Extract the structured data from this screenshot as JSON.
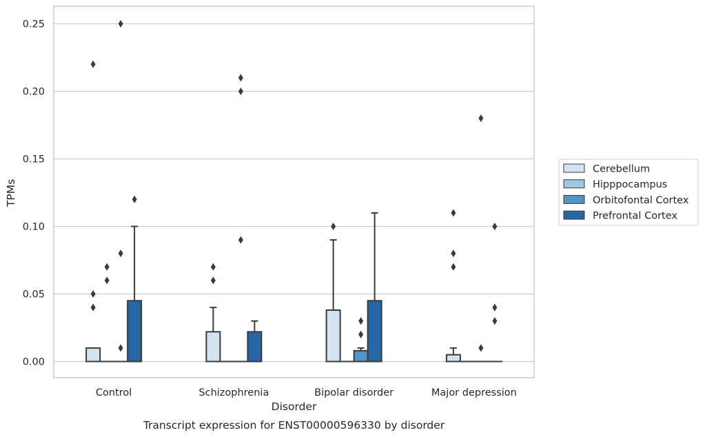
{
  "chart_data": {
    "type": "bar",
    "xlabel": "Disorder",
    "ylabel": "TPMs",
    "caption": "Transcript expression for ENST00000596330 by disorder",
    "ylim": [
      -0.012,
      0.263
    ],
    "yticks": [
      0.0,
      0.05,
      0.1,
      0.15,
      0.2,
      0.25
    ],
    "ytick_labels": [
      "0.00",
      "0.05",
      "0.10",
      "0.15",
      "0.20",
      "0.25"
    ],
    "grid": true,
    "legend_position": "right",
    "categories": [
      "Control",
      "Schizophrenia",
      "Bipolar disorder",
      "Major depression"
    ],
    "series": [
      {
        "name": "Cerebellum",
        "color": "#d3e3f1",
        "values": [
          0.01,
          0.022,
          0.038,
          0.005
        ],
        "error_upper": [
          null,
          0.04,
          0.09,
          0.01
        ],
        "outliers": [
          [
            0.04,
            0.05,
            0.22
          ],
          [
            0.06,
            0.07
          ],
          [
            0.1
          ],
          [
            0.07,
            0.08,
            0.11
          ]
        ]
      },
      {
        "name": "Hipppocampus",
        "color": "#9ec8e0",
        "values": [
          0.0,
          0.0,
          0.0,
          0.0
        ],
        "error_upper": [
          null,
          null,
          null,
          null
        ],
        "outliers": [
          [
            0.06,
            0.07
          ],
          [],
          [],
          []
        ]
      },
      {
        "name": "Orbitofontal Cortex",
        "color": "#5295c3",
        "values": [
          0.0,
          0.0,
          0.008,
          0.0
        ],
        "error_upper": [
          null,
          null,
          0.01,
          null
        ],
        "outliers": [
          [
            0.01,
            0.08,
            0.25
          ],
          [
            0.09,
            0.2,
            0.21
          ],
          [
            0.02,
            0.03
          ],
          [
            0.01,
            0.18
          ]
        ]
      },
      {
        "name": "Prefrontal Cortex",
        "color": "#2666a4",
        "values": [
          0.045,
          0.022,
          0.045,
          0.0
        ],
        "error_upper": [
          0.1,
          0.03,
          0.11,
          null
        ],
        "outliers": [
          [
            0.12
          ],
          [],
          [],
          [
            0.03,
            0.04,
            0.1
          ]
        ]
      }
    ]
  }
}
